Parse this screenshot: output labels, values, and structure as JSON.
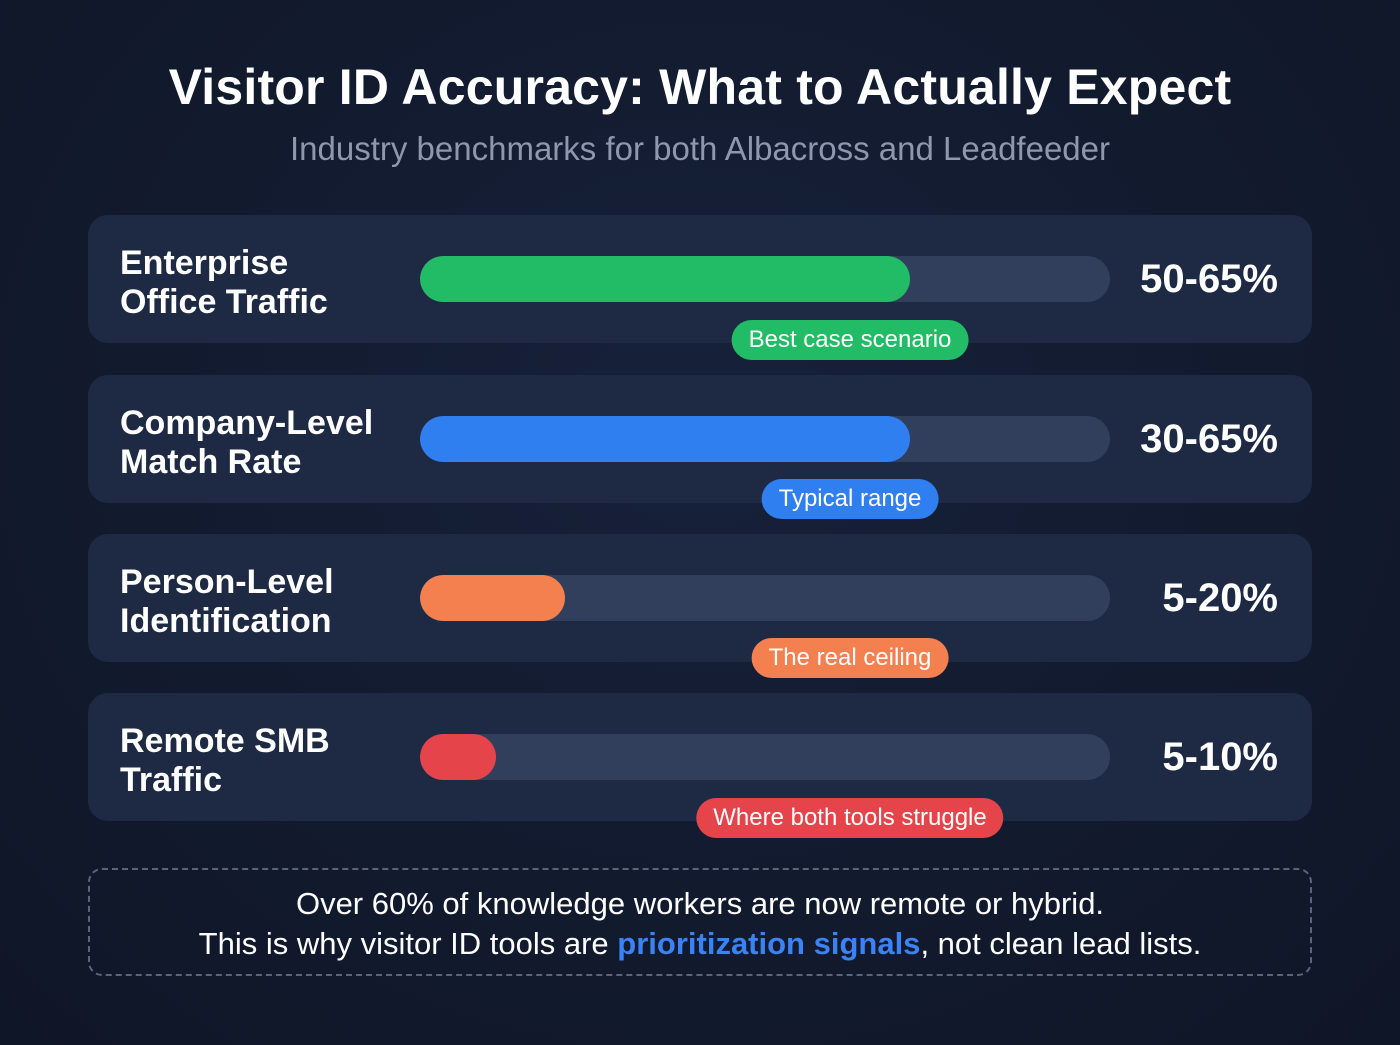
{
  "header": {
    "title": "Visitor ID Accuracy: What to Actually Expect",
    "subtitle": "Industry benchmarks for both Albacross and Leadfeeder"
  },
  "rows": [
    {
      "label_line1": "Enterprise",
      "label_line2": "Office Traffic",
      "value": "50-65%",
      "badge": "Best case scenario",
      "color": "#22bb66",
      "fill_pct": 71
    },
    {
      "label_line1": "Company-Level",
      "label_line2": "Match Rate",
      "value": "30-65%",
      "badge": "Typical range",
      "color": "#2f7ff0",
      "fill_pct": 71
    },
    {
      "label_line1": "Person-Level",
      "label_line2": "Identification",
      "value": "5-20%",
      "badge": "The real ceiling",
      "color": "#f47f4f",
      "fill_pct": 21
    },
    {
      "label_line1": "Remote SMB",
      "label_line2": "Traffic",
      "value": "5-10%",
      "badge": "Where both tools struggle",
      "color": "#e5454a",
      "fill_pct": 11
    }
  ],
  "note": {
    "line1": "Over 60% of knowledge workers are now remote or hybrid.",
    "line2_before": "This is why visitor ID tools are ",
    "line2_highlight": "prioritization signals",
    "line2_after": ", not clean lead lists."
  },
  "colors": {
    "background": "#121a2e",
    "card": "#1e2a44",
    "track": "#323f5c",
    "highlight": "#3b82f6"
  },
  "chart_data": {
    "type": "bar",
    "orientation": "horizontal",
    "title": "Visitor ID Accuracy: What to Actually Expect",
    "subtitle": "Industry benchmarks for both Albacross and Leadfeeder",
    "categories": [
      "Enterprise Office Traffic",
      "Company-Level Match Rate",
      "Person-Level Identification",
      "Remote SMB Traffic"
    ],
    "ranges": [
      [
        50,
        65
      ],
      [
        30,
        65
      ],
      [
        5,
        20
      ],
      [
        5,
        10
      ]
    ],
    "values": [
      65,
      65,
      20,
      10
    ],
    "value_labels": [
      "50-65%",
      "30-65%",
      "5-20%",
      "5-10%"
    ],
    "annotations": [
      "Best case scenario",
      "Typical range",
      "The real ceiling",
      "Where both tools struggle"
    ],
    "series_colors": [
      "#22bb66",
      "#2f7ff0",
      "#f47f4f",
      "#e5454a"
    ],
    "xlabel": "",
    "ylabel": "",
    "xlim": [
      0,
      100
    ],
    "unit": "%",
    "grid": false,
    "legend": "none"
  }
}
